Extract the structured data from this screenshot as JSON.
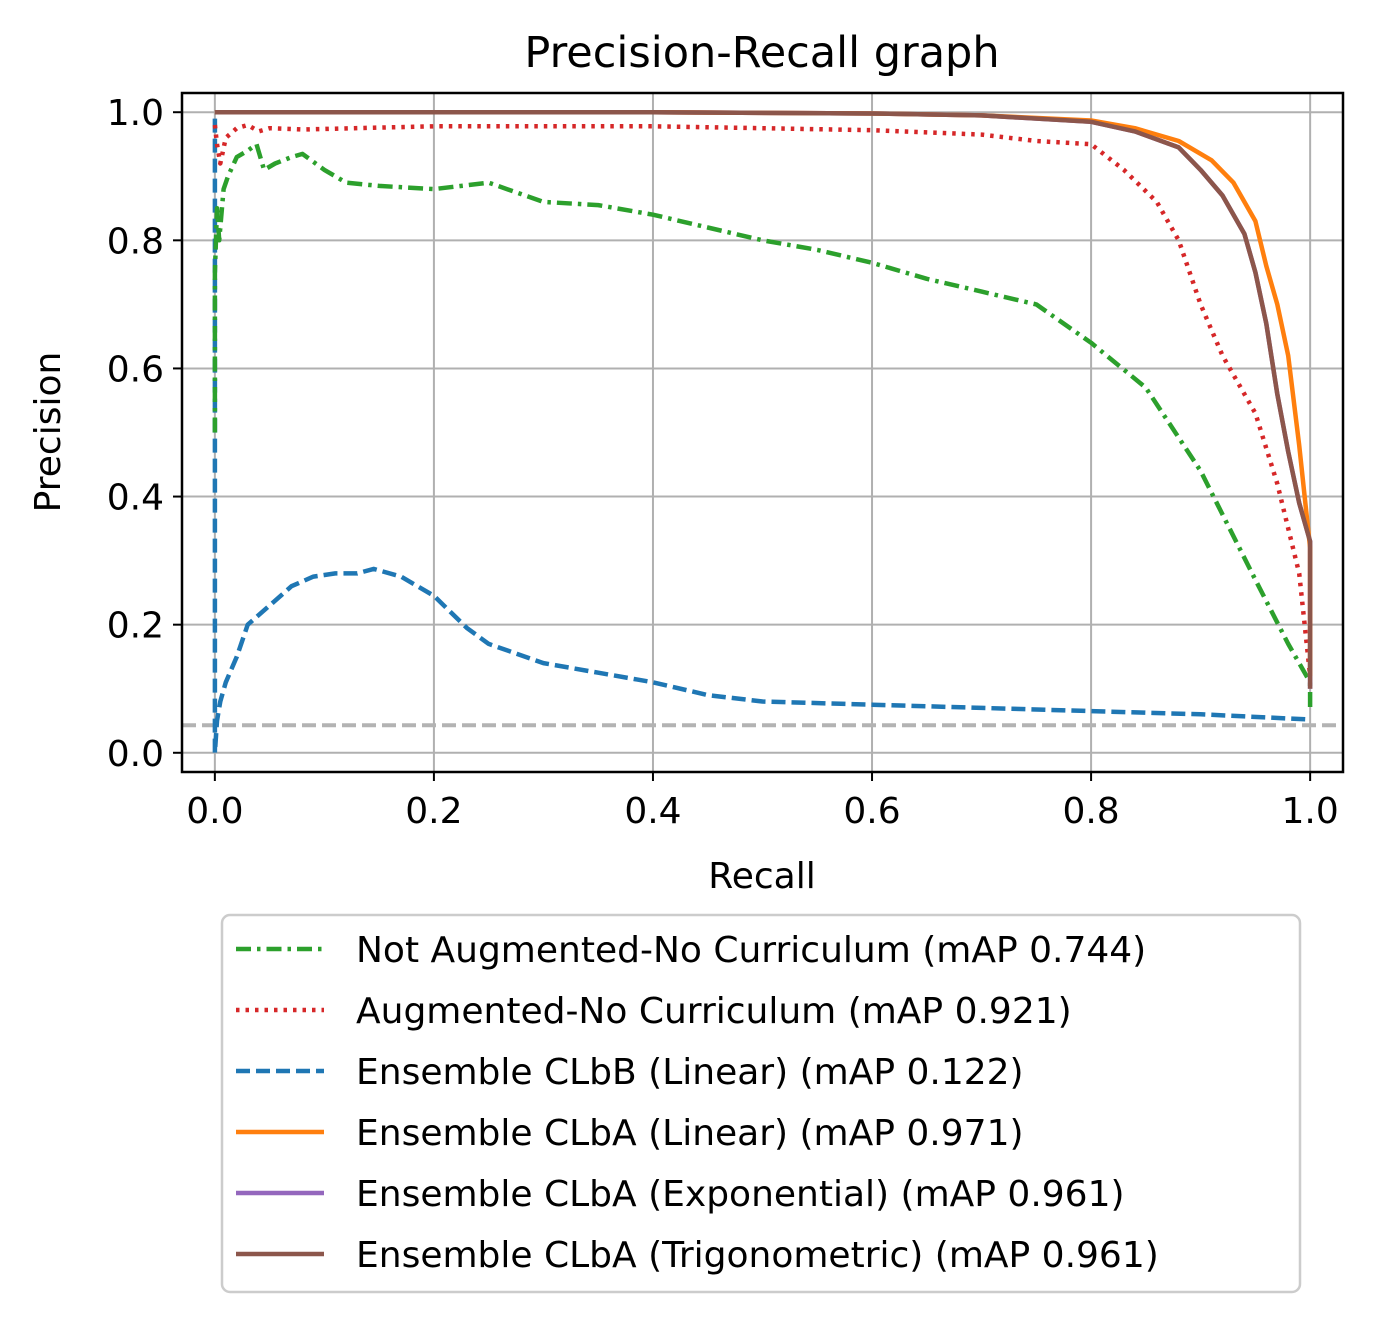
{
  "chart_data": {
    "type": "line",
    "title": "Precision-Recall graph",
    "xlabel": "Recall",
    "ylabel": "Precision",
    "xlim": [
      -0.03,
      1.03
    ],
    "ylim": [
      -0.03,
      1.03
    ],
    "xticks": [
      "0.0",
      "0.2",
      "0.4",
      "0.6",
      "0.8",
      "1.0"
    ],
    "yticks": [
      "0.0",
      "0.2",
      "0.4",
      "0.6",
      "0.8",
      "1.0"
    ],
    "grid": true,
    "legend_position": "below plot",
    "baseline": {
      "y": 0.043,
      "color": "#b3b3b3",
      "style": "dashed"
    },
    "series": [
      {
        "name": "Not Augmented-No Curriculum (mAP 0.744)",
        "color": "#2ca02c",
        "style": "dashdot",
        "x": [
          0.0,
          0.0,
          0.002,
          0.004,
          0.008,
          0.012,
          0.02,
          0.03,
          0.038,
          0.045,
          0.055,
          0.07,
          0.08,
          0.1,
          0.12,
          0.15,
          0.2,
          0.25,
          0.3,
          0.35,
          0.4,
          0.45,
          0.5,
          0.55,
          0.6,
          0.65,
          0.7,
          0.75,
          0.8,
          0.85,
          0.9,
          0.95,
          0.98,
          1.0,
          1.0
        ],
        "y": [
          0.5,
          0.75,
          0.85,
          0.8,
          0.88,
          0.9,
          0.93,
          0.94,
          0.95,
          0.91,
          0.92,
          0.93,
          0.935,
          0.91,
          0.89,
          0.885,
          0.88,
          0.89,
          0.86,
          0.855,
          0.84,
          0.82,
          0.8,
          0.785,
          0.765,
          0.74,
          0.72,
          0.7,
          0.64,
          0.57,
          0.44,
          0.27,
          0.17,
          0.11,
          0.07
        ]
      },
      {
        "name": "Augmented-No Curriculum (mAP 0.921)",
        "color": "#d62728",
        "style": "dotted",
        "x": [
          0.0,
          0.002,
          0.005,
          0.01,
          0.02,
          0.03,
          0.04,
          0.05,
          0.08,
          0.15,
          0.2,
          0.3,
          0.4,
          0.5,
          0.6,
          0.7,
          0.75,
          0.8,
          0.83,
          0.86,
          0.88,
          0.9,
          0.92,
          0.95,
          0.97,
          0.99,
          1.0
        ],
        "y": [
          0.98,
          0.95,
          0.92,
          0.96,
          0.975,
          0.98,
          0.97,
          0.975,
          0.973,
          0.976,
          0.978,
          0.978,
          0.978,
          0.975,
          0.972,
          0.965,
          0.955,
          0.95,
          0.91,
          0.86,
          0.8,
          0.7,
          0.62,
          0.53,
          0.42,
          0.28,
          0.12
        ]
      },
      {
        "name": "Ensemble CLbB (Linear) (mAP 0.122)",
        "color": "#1f77b4",
        "style": "dashed",
        "x": [
          0.0,
          0.0,
          0.002,
          0.005,
          0.01,
          0.02,
          0.03,
          0.05,
          0.07,
          0.09,
          0.11,
          0.13,
          0.145,
          0.17,
          0.2,
          0.23,
          0.25,
          0.3,
          0.35,
          0.4,
          0.45,
          0.5,
          0.6,
          0.7,
          0.8,
          0.9,
          1.0
        ],
        "y": [
          0.99,
          0.0,
          0.05,
          0.08,
          0.11,
          0.15,
          0.2,
          0.23,
          0.26,
          0.275,
          0.28,
          0.28,
          0.287,
          0.275,
          0.245,
          0.195,
          0.17,
          0.14,
          0.125,
          0.11,
          0.09,
          0.08,
          0.075,
          0.07,
          0.065,
          0.06,
          0.052
        ]
      },
      {
        "name": "Ensemble CLbA (Linear) (mAP 0.971)",
        "color": "#ff7f0e",
        "style": "solid",
        "x": [
          0.0,
          0.2,
          0.4,
          0.6,
          0.7,
          0.8,
          0.84,
          0.88,
          0.91,
          0.93,
          0.95,
          0.96,
          0.97,
          0.98,
          0.99,
          1.0,
          1.0
        ],
        "y": [
          1.0,
          1.0,
          1.0,
          0.998,
          0.995,
          0.987,
          0.975,
          0.955,
          0.925,
          0.89,
          0.83,
          0.76,
          0.7,
          0.62,
          0.48,
          0.32,
          0.12
        ]
      },
      {
        "name": "Ensemble CLbA (Exponential) (mAP 0.961)",
        "color": "#9467bd",
        "style": "solid",
        "x": [
          0.0,
          0.2,
          0.4,
          0.6,
          0.7,
          0.8,
          0.84,
          0.88,
          0.9,
          0.92,
          0.94,
          0.95,
          0.96,
          0.97,
          0.98,
          0.99,
          1.0,
          1.0
        ],
        "y": [
          1.0,
          1.0,
          1.0,
          0.998,
          0.995,
          0.985,
          0.97,
          0.945,
          0.91,
          0.87,
          0.81,
          0.75,
          0.67,
          0.56,
          0.47,
          0.39,
          0.33,
          0.1
        ]
      },
      {
        "name": "Ensemble CLbA (Trigonometric) (mAP 0.961)",
        "color": "#8c564b",
        "style": "solid",
        "x": [
          0.0,
          0.2,
          0.4,
          0.6,
          0.7,
          0.8,
          0.84,
          0.88,
          0.9,
          0.92,
          0.94,
          0.95,
          0.96,
          0.97,
          0.98,
          0.99,
          1.0,
          1.0
        ],
        "y": [
          1.0,
          1.0,
          1.0,
          0.998,
          0.995,
          0.985,
          0.97,
          0.945,
          0.91,
          0.87,
          0.81,
          0.75,
          0.67,
          0.56,
          0.47,
          0.39,
          0.33,
          0.1
        ]
      }
    ]
  }
}
